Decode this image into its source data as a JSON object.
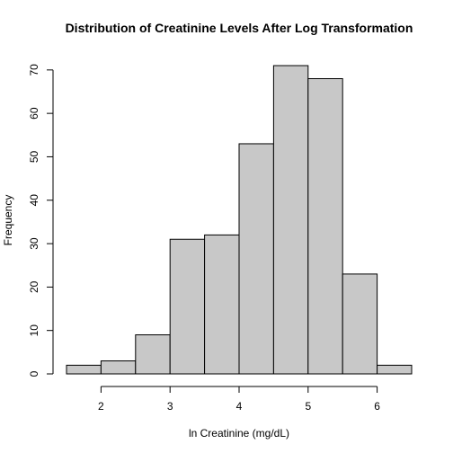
{
  "chart_data": {
    "type": "bar",
    "title": "Distribution of Creatinine Levels After Log Transformation",
    "xlabel": "ln Creatinine (mg/dL)",
    "ylabel": "Frequency",
    "bin_edges": [
      1.5,
      2.0,
      2.5,
      3.0,
      3.5,
      4.0,
      4.5,
      5.0,
      5.5,
      6.0,
      6.5
    ],
    "values": [
      2,
      3,
      9,
      31,
      32,
      53,
      71,
      68,
      23,
      2
    ],
    "xlim": [
      1.5,
      6.5
    ],
    "ylim": [
      0,
      71
    ],
    "x_ticks": [
      2,
      3,
      4,
      5,
      6
    ],
    "x_tick_labels": [
      "2",
      "3",
      "4",
      "5",
      "6"
    ],
    "y_ticks": [
      0,
      10,
      20,
      30,
      40,
      50,
      60,
      70
    ],
    "y_tick_labels": [
      "0",
      "10",
      "20",
      "30",
      "40",
      "50",
      "60",
      "70"
    ],
    "grid": false,
    "colors": {
      "bar_fill": "#c8c8c8",
      "bar_stroke": "#000000",
      "axis": "#000000"
    }
  }
}
